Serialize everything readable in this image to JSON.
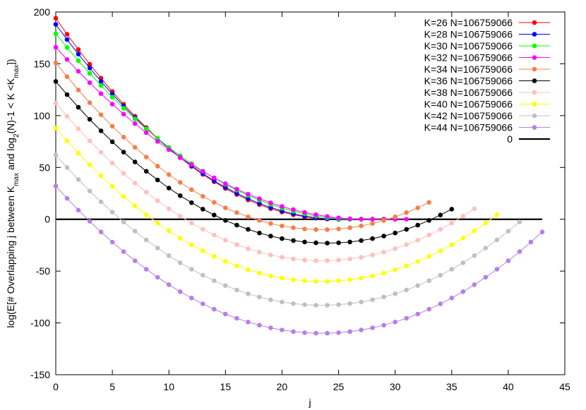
{
  "chart_data": {
    "type": "line",
    "xlabel": "j",
    "ylabel_parts": [
      {
        "text": "log(E[# Overlapping j between K",
        "sub": false
      },
      {
        "text": "max",
        "sub": true
      },
      {
        "text": " and log",
        "sub": false
      },
      {
        "text": "2",
        "sub": true
      },
      {
        "text": "(N)-1 < K <K",
        "sub": false
      },
      {
        "text": "max",
        "sub": true
      },
      {
        "text": "])",
        "sub": false
      }
    ],
    "xlim": [
      0,
      45
    ],
    "ylim": [
      -150,
      200
    ],
    "xticks": [
      "0",
      "5",
      "10",
      "15",
      "20",
      "25",
      "30",
      "35",
      "40",
      "45"
    ],
    "yticks": [
      "-150",
      "-100",
      "-50",
      "0",
      "50",
      "100",
      "150",
      "200"
    ],
    "grid": false,
    "legend_position": "top-right",
    "series": [
      {
        "name": "K=26 N=106759066",
        "color": "#ff0000",
        "y0": 194,
        "x_min": 24.6,
        "y_min": 0.2,
        "x_end": 30
      },
      {
        "name": "K=28 N=106759066",
        "color": "#0000ff",
        "y0": 188,
        "x_min": 25.2,
        "y_min": 0,
        "x_end": 30
      },
      {
        "name": "K=30 N=106759066",
        "color": "#00ff00",
        "y0": 179,
        "x_min": 26.5,
        "y_min": 0,
        "x_end": 30
      },
      {
        "name": "K=32 N=106759066",
        "color": "#ff00ff",
        "y0": 166,
        "x_min": 27.5,
        "y_min": 0,
        "x_end": 31
      },
      {
        "name": "K=34 N=106759066",
        "color": "#f4804a",
        "y0": 151,
        "x_min": 23.5,
        "y_min": -10,
        "x_end": 33
      },
      {
        "name": "K=36 N=106759066",
        "color": "#000000",
        "y0": 133,
        "x_min": 24,
        "y_min": -23,
        "x_end": 35
      },
      {
        "name": "K=38 N=106759066",
        "color": "#ffbfbf",
        "y0": 112,
        "x_min": 23.5,
        "y_min": -40,
        "x_end": 37
      },
      {
        "name": "K=40 N=106759066",
        "color": "#ffff00",
        "y0": 88,
        "x_min": 23.5,
        "y_min": -60,
        "x_end": 39
      },
      {
        "name": "K=42 N=106759066",
        "color": "#c0c0c0",
        "y0": 62,
        "x_min": 23.5,
        "y_min": -83,
        "x_end": 41
      },
      {
        "name": "K=44 N=106759066",
        "color": "#b87fe6",
        "y0": 32,
        "x_min": 23.5,
        "y_min": -110,
        "x_end": 43
      }
    ],
    "reference_line": {
      "name": "0",
      "y": 0,
      "x_range": [
        0,
        43
      ],
      "color": "#000000"
    }
  }
}
